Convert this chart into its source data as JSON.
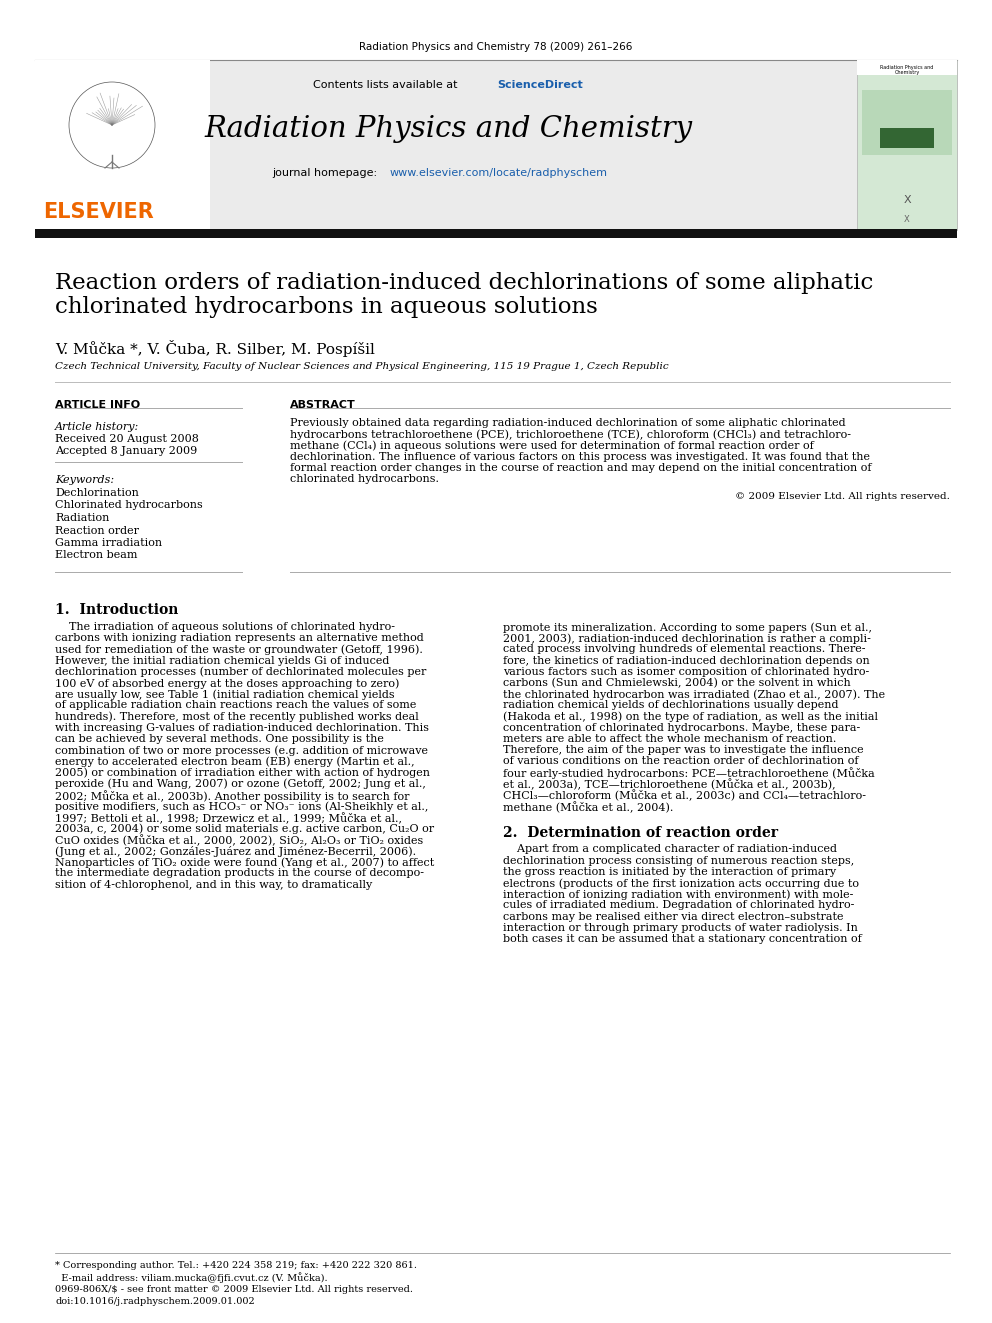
{
  "journal_header": "Radiation Physics and Chemistry 78 (2009) 261–266",
  "journal_name": "Radiation Physics and Chemistry",
  "journal_url": "www.elsevier.com/locate/radphyschem",
  "title_line1": "Reaction orders of radiation-induced dechlorinations of some aliphatic",
  "title_line2": "chlorinated hydrocarbons in aqueous solutions",
  "authors": "V. Můčka *, V. Čuba, R. Silber, M. Pospíšil",
  "affiliation": "Czech Technical University, Faculty of Nuclear Sciences and Physical Engineering, 115 19 Prague 1, Czech Republic",
  "article_info_header": "ARTICLE INFO",
  "abstract_header": "ABSTRACT",
  "article_history_label": "Article history:",
  "received": "Received 20 August 2008",
  "accepted": "Accepted 8 January 2009",
  "keywords_label": "Keywords:",
  "keywords": [
    "Dechlorination",
    "Chlorinated hydrocarbons",
    "Radiation",
    "Reaction order",
    "Gamma irradiation",
    "Electron beam"
  ],
  "abstract_lines": [
    "Previously obtained data regarding radiation-induced dechlorination of some aliphatic chlorinated",
    "hydrocarbons tetrachloroethene (PCE), trichloroethene (TCE), chloroform (CHCl₃) and tetrachloro-",
    "methane (CCl₄) in aqueous solutions were used for determination of formal reaction order of",
    "dechlorination. The influence of various factors on this process was investigated. It was found that the",
    "formal reaction order changes in the course of reaction and may depend on the initial concentration of",
    "chlorinated hydrocarbons."
  ],
  "copyright": "© 2009 Elsevier Ltd. All rights reserved.",
  "section1_header": "1.  Introduction",
  "section1_left_lines": [
    "    The irradiation of aqueous solutions of chlorinated hydro-",
    "carbons with ionizing radiation represents an alternative method",
    "used for remediation of the waste or groundwater (Getoff, 1996).",
    "However, the initial radiation chemical yields Gi of induced",
    "dechlorination processes (number of dechlorinated molecules per",
    "100 eV of absorbed energy at the doses approaching to zero)",
    "are usually low, see Table 1 (initial radiation chemical yields",
    "of applicable radiation chain reactions reach the values of some",
    "hundreds). Therefore, most of the recently published works deal",
    "with increasing G-values of radiation-induced dechlorination. This",
    "can be achieved by several methods. One possibility is the",
    "combination of two or more processes (e.g. addition of microwave",
    "energy to accelerated electron beam (EB) energy (Martin et al.,",
    "2005) or combination of irradiation either with action of hydrogen",
    "peroxide (Hu and Wang, 2007) or ozone (Getoff, 2002; Jung et al.,",
    "2002; Můčka et al., 2003b). Another possibility is to search for",
    "positive modifiers, such as HCO₃⁻ or NO₃⁻ ions (Al-Sheikhly et al.,",
    "1997; Bettoli et al., 1998; Drzewicz et al., 1999; Můčka et al.,",
    "2003a, c, 2004) or some solid materials e.g. active carbon, Cu₂O or",
    "CuO oxides (Můčka et al., 2000, 2002), SiO₂, Al₂O₃ or TiO₂ oxides",
    "(Jung et al., 2002; Gonzáles-Juárez and Jiménez-Becerril, 2006).",
    "Nanoparticles of TiO₂ oxide were found (Yang et al., 2007) to affect",
    "the intermediate degradation products in the course of decompo-",
    "sition of 4-chlorophenol, and in this way, to dramatically"
  ],
  "section1_right_lines": [
    "promote its mineralization. According to some papers (Sun et al.,",
    "2001, 2003), radiation-induced dechlorination is rather a compli-",
    "cated process involving hundreds of elemental reactions. There-",
    "fore, the kinetics of radiation-induced dechlorination depends on",
    "various factors such as isomer composition of chlorinated hydro-",
    "carbons (Sun and Chmielewski, 2004) or the solvent in which",
    "the chlorinated hydrocarbon was irradiated (Zhao et al., 2007). The",
    "radiation chemical yields of dechlorinations usually depend",
    "(Hakoda et al., 1998) on the type of radiation, as well as the initial",
    "concentration of chlorinated hydrocarbons. Maybe, these para-",
    "meters are able to affect the whole mechanism of reaction.",
    "Therefore, the aim of the paper was to investigate the influence",
    "of various conditions on the reaction order of dechlorination of",
    "four early-studied hydrocarbons: PCE—tetrachloroethene (Můčka",
    "et al., 2003a), TCE—trichloroethene (Můčka et al., 2003b),",
    "CHCl₃—chloroform (Můčka et al., 2003c) and CCl₄—tetrachloro-",
    "methane (Můčka et al., 2004)."
  ],
  "section2_header": "2.  Determination of reaction order",
  "section2_right_lines": [
    "    Apart from a complicated character of radiation-induced",
    "dechlorination process consisting of numerous reaction steps,",
    "the gross reaction is initiated by the interaction of primary",
    "electrons (products of the first ionization acts occurring due to",
    "interaction of ionizing radiation with environment) with mole-",
    "cules of irradiated medium. Degradation of chlorinated hydro-",
    "carbons may be realised either via direct electron–substrate",
    "interaction or through primary products of water radiolysis. In",
    "both cases it can be assumed that a stationary concentration of"
  ],
  "footer_note1": "* Corresponding author. Tel.: +420 224 358 219; fax: +420 222 320 861.",
  "footer_note2": "  E-mail address: viliam.mucka@fjfi.cvut.cz (V. Můčka).",
  "footer_issn": "0969-806X/$ - see front matter © 2009 Elsevier Ltd. All rights reserved.",
  "footer_doi": "doi:10.1016/j.radphyschem.2009.01.002",
  "bg_color": "#ffffff",
  "header_bg": "#e8e8e8",
  "black_bar_color": "#111111",
  "link_color": "#1a5fac",
  "elsevier_orange": "#ee6600",
  "separator_color": "#999999",
  "text_color": "#000000"
}
